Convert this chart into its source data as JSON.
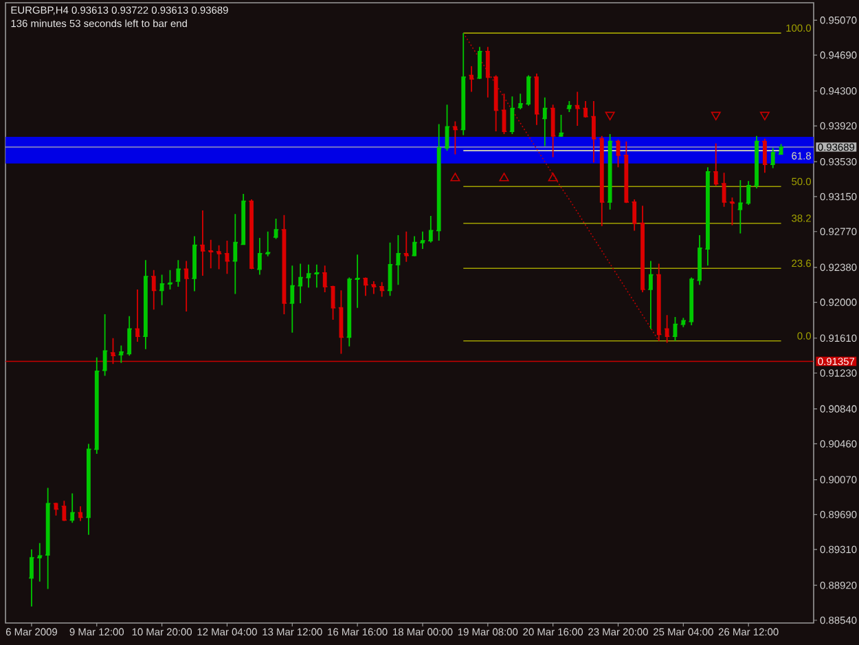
{
  "chart_data": {
    "type": "candlestick",
    "title": "EURGBP,H4 0.93613 0.93722 0.93613 0.93689",
    "annotations": [
      "136 minutes 53 seconds left to bar end"
    ],
    "categories": [
      "6 Mar 2009",
      null,
      null,
      null,
      null,
      null,
      null,
      null,
      "9 Mar 12:00",
      null,
      null,
      null,
      null,
      null,
      null,
      null,
      "10 Mar 20:00",
      null,
      null,
      null,
      null,
      null,
      null,
      null,
      "12 Mar 04:00",
      null,
      null,
      null,
      null,
      null,
      null,
      null,
      "13 Mar 12:00",
      null,
      null,
      null,
      null,
      null,
      null,
      null,
      "16 Mar 16:00",
      null,
      null,
      null,
      null,
      null,
      null,
      null,
      "18 Mar 00:00",
      null,
      null,
      null,
      null,
      null,
      null,
      null,
      "19 Mar 08:00",
      null,
      null,
      null,
      null,
      null,
      null,
      null,
      "20 Mar 16:00",
      null,
      null,
      null,
      null,
      null,
      null,
      null,
      "23 Mar 20:00",
      null,
      null,
      null,
      null,
      null,
      null,
      null,
      "25 Mar 04:00",
      null,
      null,
      null,
      null,
      null,
      null,
      null,
      "26 Mar 12:00",
      null,
      null,
      null,
      null
    ],
    "ohlc": [
      [
        0.89,
        0.8931,
        0.8869,
        0.8922
      ],
      [
        0.8922,
        0.8938,
        0.8896,
        0.8924
      ],
      [
        0.8925,
        0.8998,
        0.8888,
        0.8981
      ],
      [
        0.8981,
        0.8982,
        0.8968,
        0.8975
      ],
      [
        0.8978,
        0.8984,
        0.8962,
        0.8963
      ],
      [
        0.8963,
        0.8992,
        0.896,
        0.8971
      ],
      [
        0.8971,
        0.8978,
        0.8962,
        0.8966
      ],
      [
        0.8966,
        0.9046,
        0.8947,
        0.904
      ],
      [
        0.904,
        0.914,
        0.9035,
        0.9125
      ],
      [
        0.9126,
        0.9187,
        0.912,
        0.9147
      ],
      [
        0.9145,
        0.9161,
        0.9133,
        0.9142
      ],
      [
        0.9143,
        0.9153,
        0.9134,
        0.9146
      ],
      [
        0.9144,
        0.9185,
        0.9142,
        0.9171
      ],
      [
        0.9171,
        0.9214,
        0.9157,
        0.9163
      ],
      [
        0.9163,
        0.9246,
        0.9149,
        0.9228
      ],
      [
        0.9228,
        0.9235,
        0.9192,
        0.9213
      ],
      [
        0.9213,
        0.923,
        0.9197,
        0.922
      ],
      [
        0.922,
        0.9235,
        0.9214,
        0.9221
      ],
      [
        0.9223,
        0.9246,
        0.9217,
        0.9236
      ],
      [
        0.9236,
        0.9245,
        0.919,
        0.9226
      ],
      [
        0.9226,
        0.9272,
        0.9212,
        0.9262
      ],
      [
        0.9262,
        0.93,
        0.9229,
        0.9256
      ],
      [
        0.9256,
        0.9268,
        0.9237,
        0.9255
      ],
      [
        0.9255,
        0.9262,
        0.9236,
        0.9253
      ],
      [
        0.9253,
        0.9267,
        0.9231,
        0.9245
      ],
      [
        0.9245,
        0.9296,
        0.9209,
        0.9265
      ],
      [
        0.9263,
        0.9318,
        0.9263,
        0.931
      ],
      [
        0.931,
        0.9312,
        0.9236,
        0.9237
      ],
      [
        0.9236,
        0.927,
        0.923,
        0.9253
      ],
      [
        0.9253,
        0.9277,
        0.925,
        0.9254
      ],
      [
        0.9271,
        0.9291,
        0.9269,
        0.9279
      ],
      [
        0.9279,
        0.9295,
        0.9187,
        0.9199
      ],
      [
        0.9199,
        0.924,
        0.9167,
        0.9218
      ],
      [
        0.9218,
        0.9242,
        0.9199,
        0.9227
      ],
      [
        0.9227,
        0.9241,
        0.9216,
        0.9231
      ],
      [
        0.9231,
        0.9241,
        0.9216,
        0.9232
      ],
      [
        0.9232,
        0.924,
        0.9211,
        0.9217
      ],
      [
        0.9217,
        0.9218,
        0.9181,
        0.9194
      ],
      [
        0.9194,
        0.9213,
        0.9144,
        0.9162
      ],
      [
        0.9162,
        0.9227,
        0.9152,
        0.9225
      ],
      [
        0.9225,
        0.9252,
        0.9194,
        0.9226
      ],
      [
        0.9226,
        0.9227,
        0.9207,
        0.9219
      ],
      [
        0.9219,
        0.9223,
        0.9209,
        0.9217
      ],
      [
        0.9217,
        0.9222,
        0.9206,
        0.9213
      ],
      [
        0.9213,
        0.9265,
        0.9207,
        0.9241
      ],
      [
        0.9241,
        0.9273,
        0.9219,
        0.9253
      ],
      [
        0.9253,
        0.9277,
        0.9244,
        0.9251
      ],
      [
        0.9251,
        0.9272,
        0.925,
        0.9265
      ],
      [
        0.9265,
        0.9277,
        0.9258,
        0.9267
      ],
      [
        0.9267,
        0.9294,
        0.9265,
        0.9278
      ],
      [
        0.9278,
        0.9394,
        0.9267,
        0.9368
      ],
      [
        0.9368,
        0.9415,
        0.9365,
        0.9391
      ],
      [
        0.9391,
        0.9397,
        0.9361,
        0.9388
      ],
      [
        0.9388,
        0.9493,
        0.9382,
        0.9445
      ],
      [
        0.9447,
        0.9457,
        0.9429,
        0.9443
      ],
      [
        0.9444,
        0.9478,
        0.9443,
        0.9473
      ],
      [
        0.9473,
        0.9478,
        0.9423,
        0.9445
      ],
      [
        0.9445,
        0.9447,
        0.9386,
        0.9409
      ],
      [
        0.9409,
        0.9427,
        0.9383,
        0.9386
      ],
      [
        0.9386,
        0.9424,
        0.9383,
        0.9411
      ],
      [
        0.9412,
        0.9427,
        0.941,
        0.9416
      ],
      [
        0.9416,
        0.9447,
        0.9414,
        0.9445
      ],
      [
        0.9445,
        0.9449,
        0.9393,
        0.9405
      ],
      [
        0.94,
        0.9423,
        0.937,
        0.9411
      ],
      [
        0.9411,
        0.9415,
        0.9358,
        0.9381
      ],
      [
        0.9381,
        0.9404,
        0.938,
        0.9384
      ],
      [
        0.9411,
        0.9419,
        0.9407,
        0.9414
      ],
      [
        0.9414,
        0.9429,
        0.9392,
        0.9411
      ],
      [
        0.9411,
        0.9419,
        0.9401,
        0.9402
      ],
      [
        0.9402,
        0.9419,
        0.9352,
        0.9378
      ],
      [
        0.9378,
        0.9381,
        0.9283,
        0.9309
      ],
      [
        0.9309,
        0.9383,
        0.9301,
        0.9375
      ],
      [
        0.9375,
        0.9377,
        0.9347,
        0.936
      ],
      [
        0.936,
        0.9375,
        0.9308,
        0.9309
      ],
      [
        0.9309,
        0.9312,
        0.9278,
        0.9286
      ],
      [
        0.9286,
        0.9305,
        0.9211,
        0.9214
      ],
      [
        0.9214,
        0.9245,
        0.9171,
        0.923
      ],
      [
        0.923,
        0.9242,
        0.9158,
        0.9165
      ],
      [
        0.9171,
        0.9186,
        0.9156,
        0.9163
      ],
      [
        0.9163,
        0.9184,
        0.9158,
        0.9176
      ],
      [
        0.9176,
        0.9183,
        0.9173,
        0.918
      ],
      [
        0.9179,
        0.9227,
        0.9175,
        0.9225
      ],
      [
        0.9224,
        0.9273,
        0.9219,
        0.9259
      ],
      [
        0.9258,
        0.9347,
        0.924,
        0.9342
      ],
      [
        0.9342,
        0.9373,
        0.9327,
        0.9329
      ],
      [
        0.9329,
        0.9341,
        0.9304,
        0.9309
      ],
      [
        0.9309,
        0.9314,
        0.9284,
        0.9308
      ],
      [
        0.9301,
        0.9333,
        0.9275,
        0.9308
      ],
      [
        0.9308,
        0.9332,
        0.9306,
        0.9327
      ],
      [
        0.9327,
        0.9381,
        0.9324,
        0.9375
      ],
      [
        0.9375,
        0.9378,
        0.9341,
        0.935
      ],
      [
        0.935,
        0.9368,
        0.9346,
        0.9363
      ],
      [
        0.93613,
        0.93722,
        0.93613,
        0.93689
      ]
    ],
    "colors": [
      "#00c800",
      "#00c800",
      "#00c800",
      "#dc0000",
      "#dc0000",
      "#00c800",
      "#dc0000",
      "#00c800",
      "#00c800",
      "#00c800",
      "#dc0000",
      "#00c800",
      "#00c800",
      "#dc0000",
      "#00c800",
      "#dc0000",
      "#00c800",
      "#00c800",
      "#00c800",
      "#dc0000",
      "#00c800",
      "#dc0000",
      "#dc0000",
      "#dc0000",
      "#dc0000",
      "#00c800",
      "#00c800",
      "#dc0000",
      "#00c800",
      "#00c800",
      "#00c800",
      "#dc0000",
      "#00c800",
      "#00c800",
      "#00c800",
      "#00c800",
      "#dc0000",
      "#dc0000",
      "#dc0000",
      "#00c800",
      "#00c800",
      "#dc0000",
      "#dc0000",
      "#dc0000",
      "#00c800",
      "#00c800",
      "#dc0000",
      "#00c800",
      "#00c800",
      "#00c800",
      "#00c800",
      "#00c800",
      "#dc0000",
      "#00c800",
      "#dc0000",
      "#00c800",
      "#dc0000",
      "#dc0000",
      "#dc0000",
      "#00c800",
      "#00c800",
      "#00c800",
      "#dc0000",
      "#00c800",
      "#dc0000",
      "#00c800",
      "#00c800",
      "#dc0000",
      "#dc0000",
      "#dc0000",
      "#dc0000",
      "#00c800",
      "#dc0000",
      "#dc0000",
      "#dc0000",
      "#dc0000",
      "#00c800",
      "#dc0000",
      "#dc0000",
      "#00c800",
      "#00c800",
      "#00c800",
      "#00c800",
      "#00c800",
      "#dc0000",
      "#dc0000",
      "#dc0000",
      "#00c800",
      "#00c800",
      "#00c800",
      "#dc0000",
      "#00c800",
      "#00c800"
    ],
    "ylim": [
      0.8851,
      0.9526
    ],
    "yticks": [
      {
        "value": 0.9507,
        "label": "0.95070"
      },
      {
        "value": 0.9469,
        "label": "0.94690"
      },
      {
        "value": 0.943,
        "label": "0.94300"
      },
      {
        "value": 0.9392,
        "label": "0.93920"
      },
      {
        "value": 0.9353,
        "label": "0.93530"
      },
      {
        "value": 0.9315,
        "label": "0.93150"
      },
      {
        "value": 0.9277,
        "label": "0.92770"
      },
      {
        "value": 0.9238,
        "label": "0.92380"
      },
      {
        "value": 0.92,
        "label": "0.92000"
      },
      {
        "value": 0.9161,
        "label": "0.91610"
      },
      {
        "value": 0.9123,
        "label": "0.91230"
      },
      {
        "value": 0.9084,
        "label": "0.90840"
      },
      {
        "value": 0.9046,
        "label": "0.90460"
      },
      {
        "value": 0.9007,
        "label": "0.90070"
      },
      {
        "value": 0.8969,
        "label": "0.89690"
      },
      {
        "value": 0.8931,
        "label": "0.89310"
      },
      {
        "value": 0.8892,
        "label": "0.88920"
      },
      {
        "value": 0.8854,
        "label": "0.88540"
      }
    ],
    "series": [
      {
        "type": "line",
        "name": "100.0",
        "color": "#a0a000",
        "values": [
          null,
          null,
          null,
          null,
          null,
          null,
          null,
          null,
          null,
          null,
          null,
          null,
          null,
          null,
          null,
          null,
          null,
          null,
          null,
          null,
          null,
          null,
          null,
          null,
          null,
          null,
          null,
          null,
          null,
          null,
          null,
          null,
          null,
          null,
          null,
          null,
          null,
          null,
          null,
          null,
          null,
          null,
          null,
          null,
          null,
          null,
          null,
          null,
          null,
          null,
          null,
          null,
          null,
          0.9493,
          0.9493,
          0.9493,
          0.9493,
          0.9493,
          0.9493,
          0.9493,
          0.9493,
          0.9493,
          0.9493,
          0.9493,
          0.9493,
          0.9493,
          0.9493,
          0.9493,
          0.9493,
          0.9493,
          0.9493,
          0.9493,
          0.9493,
          0.9493,
          0.9493,
          0.9493,
          0.9493,
          0.9493,
          0.9493,
          0.9493,
          0.9493,
          0.9493,
          0.9493,
          0.9493,
          0.9493,
          0.9493,
          0.9493,
          0.9493,
          0.9493,
          0.9493,
          0.9493,
          0.9493,
          0.9493
        ]
      },
      {
        "type": "line",
        "name": "61.8",
        "color": "#dcdcb4",
        "values": [
          null,
          null,
          null,
          null,
          null,
          null,
          null,
          null,
          null,
          null,
          null,
          null,
          null,
          null,
          null,
          null,
          null,
          null,
          null,
          null,
          null,
          null,
          null,
          null,
          null,
          null,
          null,
          null,
          null,
          null,
          null,
          null,
          null,
          null,
          null,
          null,
          null,
          null,
          null,
          null,
          null,
          null,
          null,
          null,
          null,
          null,
          null,
          null,
          null,
          null,
          null,
          null,
          null,
          0.9365,
          0.9365,
          0.9365,
          0.9365,
          0.9365,
          0.9365,
          0.9365,
          0.9365,
          0.9365,
          0.9365,
          0.9365,
          0.9365,
          0.9365,
          0.9365,
          0.9365,
          0.9365,
          0.9365,
          0.9365,
          0.9365,
          0.9365,
          0.9365,
          0.9365,
          0.9365,
          0.9365,
          0.9365,
          0.9365,
          0.9365,
          0.9365,
          0.9365,
          0.9365,
          0.9365,
          0.9365,
          0.9365,
          0.9365,
          0.9365,
          0.9365,
          0.9365,
          0.9365,
          0.9365,
          0.9365
        ]
      },
      {
        "type": "line",
        "name": "50.0",
        "color": "#a0a000",
        "values": [
          null,
          null,
          null,
          null,
          null,
          null,
          null,
          null,
          null,
          null,
          null,
          null,
          null,
          null,
          null,
          null,
          null,
          null,
          null,
          null,
          null,
          null,
          null,
          null,
          null,
          null,
          null,
          null,
          null,
          null,
          null,
          null,
          null,
          null,
          null,
          null,
          null,
          null,
          null,
          null,
          null,
          null,
          null,
          null,
          null,
          null,
          null,
          null,
          null,
          null,
          null,
          null,
          null,
          0.9326,
          0.9326,
          0.9326,
          0.9326,
          0.9326,
          0.9326,
          0.9326,
          0.9326,
          0.9326,
          0.9326,
          0.9326,
          0.9326,
          0.9326,
          0.9326,
          0.9326,
          0.9326,
          0.9326,
          0.9326,
          0.9326,
          0.9326,
          0.9326,
          0.9326,
          0.9326,
          0.9326,
          0.9326,
          0.9326,
          0.9326,
          0.9326,
          0.9326,
          0.9326,
          0.9326,
          0.9326,
          0.9326,
          0.9326,
          0.9326,
          0.9326,
          0.9326,
          0.9326,
          0.9326,
          0.9326
        ]
      },
      {
        "type": "line",
        "name": "38.2",
        "color": "#a0a000",
        "values": [
          null,
          null,
          null,
          null,
          null,
          null,
          null,
          null,
          null,
          null,
          null,
          null,
          null,
          null,
          null,
          null,
          null,
          null,
          null,
          null,
          null,
          null,
          null,
          null,
          null,
          null,
          null,
          null,
          null,
          null,
          null,
          null,
          null,
          null,
          null,
          null,
          null,
          null,
          null,
          null,
          null,
          null,
          null,
          null,
          null,
          null,
          null,
          null,
          null,
          null,
          null,
          null,
          null,
          0.9286,
          0.9286,
          0.9286,
          0.9286,
          0.9286,
          0.9286,
          0.9286,
          0.9286,
          0.9286,
          0.9286,
          0.9286,
          0.9286,
          0.9286,
          0.9286,
          0.9286,
          0.9286,
          0.9286,
          0.9286,
          0.9286,
          0.9286,
          0.9286,
          0.9286,
          0.9286,
          0.9286,
          0.9286,
          0.9286,
          0.9286,
          0.9286,
          0.9286,
          0.9286,
          0.9286,
          0.9286,
          0.9286,
          0.9286,
          0.9286,
          0.9286,
          0.9286,
          0.9286,
          0.9286,
          0.9286
        ]
      },
      {
        "type": "line",
        "name": "23.6",
        "color": "#a0a000",
        "values": [
          null,
          null,
          null,
          null,
          null,
          null,
          null,
          null,
          null,
          null,
          null,
          null,
          null,
          null,
          null,
          null,
          null,
          null,
          null,
          null,
          null,
          null,
          null,
          null,
          null,
          null,
          null,
          null,
          null,
          null,
          null,
          null,
          null,
          null,
          null,
          null,
          null,
          null,
          null,
          null,
          null,
          null,
          null,
          null,
          null,
          null,
          null,
          null,
          null,
          null,
          null,
          null,
          null,
          0.9237,
          0.9237,
          0.9237,
          0.9237,
          0.9237,
          0.9237,
          0.9237,
          0.9237,
          0.9237,
          0.9237,
          0.9237,
          0.9237,
          0.9237,
          0.9237,
          0.9237,
          0.9237,
          0.9237,
          0.9237,
          0.9237,
          0.9237,
          0.9237,
          0.9237,
          0.9237,
          0.9237,
          0.9237,
          0.9237,
          0.9237,
          0.9237,
          0.9237,
          0.9237,
          0.9237,
          0.9237,
          0.9237,
          0.9237,
          0.9237,
          0.9237,
          0.9237,
          0.9237,
          0.9237,
          0.9237
        ]
      },
      {
        "type": "line",
        "name": "0.0",
        "color": "#a0a000",
        "values": [
          null,
          null,
          null,
          null,
          null,
          null,
          null,
          null,
          null,
          null,
          null,
          null,
          null,
          null,
          null,
          null,
          null,
          null,
          null,
          null,
          null,
          null,
          null,
          null,
          null,
          null,
          null,
          null,
          null,
          null,
          null,
          null,
          null,
          null,
          null,
          null,
          null,
          null,
          null,
          null,
          null,
          null,
          null,
          null,
          null,
          null,
          null,
          null,
          null,
          null,
          null,
          null,
          null,
          0.9158,
          0.9158,
          0.9158,
          0.9158,
          0.9158,
          0.9158,
          0.9158,
          0.9158,
          0.9158,
          0.9158,
          0.9158,
          0.9158,
          0.9158,
          0.9158,
          0.9158,
          0.9158,
          0.9158,
          0.9158,
          0.9158,
          0.9158,
          0.9158,
          0.9158,
          0.9158,
          0.9158,
          0.9158,
          0.9158,
          0.9158,
          0.9158,
          0.9158,
          0.9158,
          0.9158,
          0.9158,
          0.9158,
          0.9158,
          0.9158,
          0.9158,
          0.9158,
          0.9158,
          0.9158,
          0.9158
        ]
      },
      {
        "type": "line",
        "color": "#c80000",
        "line_style": "dotted",
        "values": [
          null,
          null,
          null,
          null,
          null,
          null,
          null,
          null,
          null,
          null,
          null,
          null,
          null,
          null,
          null,
          null,
          null,
          null,
          null,
          null,
          null,
          null,
          null,
          null,
          null,
          null,
          null,
          null,
          null,
          null,
          null,
          null,
          null,
          null,
          null,
          null,
          null,
          null,
          null,
          null,
          null,
          null,
          null,
          null,
          null,
          null,
          null,
          null,
          null,
          null,
          null,
          null,
          null,
          0.9493,
          0.9479,
          0.9465,
          0.9451,
          0.9437,
          0.9423,
          0.9409,
          0.9395,
          0.9381,
          0.9367,
          0.9353,
          0.9339,
          0.9325,
          0.9312,
          0.9298,
          0.9284,
          0.927,
          0.9256,
          0.9242,
          0.9228,
          0.9214,
          0.92,
          0.9186,
          0.9172,
          0.9158,
          null,
          null,
          null,
          null,
          null,
          null,
          null,
          null,
          null,
          null,
          null,
          null,
          null,
          null,
          null
        ]
      },
      {
        "type": "scatter",
        "color": "#c80000",
        "marker": "triangle",
        "values": [
          null,
          null,
          null,
          null,
          null,
          null,
          null,
          null,
          null,
          null,
          null,
          null,
          null,
          null,
          null,
          null,
          null,
          null,
          null,
          null,
          null,
          null,
          null,
          null,
          null,
          null,
          null,
          null,
          null,
          null,
          null,
          null,
          null,
          null,
          null,
          null,
          null,
          null,
          null,
          null,
          null,
          null,
          null,
          null,
          null,
          null,
          null,
          null,
          null,
          null,
          null,
          null,
          0.9335,
          null,
          null,
          null,
          null,
          null,
          0.9335,
          null,
          null,
          null,
          null,
          null,
          0.9335,
          null,
          null,
          null,
          null,
          null,
          null,
          null,
          null,
          null,
          null,
          null,
          null,
          null,
          null,
          null,
          null,
          null,
          null,
          null,
          null,
          null,
          null,
          null,
          null,
          null,
          null,
          null,
          null
        ]
      },
      {
        "type": "scatter",
        "color": "#c80000",
        "marker": "triangle",
        "values": [
          null,
          null,
          null,
          null,
          null,
          null,
          null,
          null,
          null,
          null,
          null,
          null,
          null,
          null,
          null,
          null,
          null,
          null,
          null,
          null,
          null,
          null,
          null,
          null,
          null,
          null,
          null,
          null,
          null,
          null,
          null,
          null,
          null,
          null,
          null,
          null,
          null,
          null,
          null,
          null,
          null,
          null,
          null,
          null,
          null,
          null,
          null,
          null,
          null,
          null,
          null,
          null,
          null,
          null,
          null,
          null,
          null,
          null,
          null,
          null,
          null,
          null,
          null,
          null,
          null,
          null,
          null,
          null,
          null,
          null,
          null,
          0.9404,
          null,
          null,
          null,
          null,
          null,
          null,
          null,
          null,
          null,
          null,
          null,
          null,
          0.9404,
          null,
          null,
          null,
          null,
          null,
          0.9404,
          null,
          null
        ]
      }
    ],
    "ref_lines": [
      {
        "axis": "y",
        "value": 0.93689,
        "label": "0.93689",
        "color": "#b4b4b4"
      },
      {
        "axis": "y",
        "value": 0.91357,
        "label": "0.91357",
        "color": "#c80000"
      }
    ],
    "bands": [
      {
        "axis": "y",
        "from": 0.9351,
        "to": 0.938,
        "color": "#0000e6"
      }
    ]
  }
}
